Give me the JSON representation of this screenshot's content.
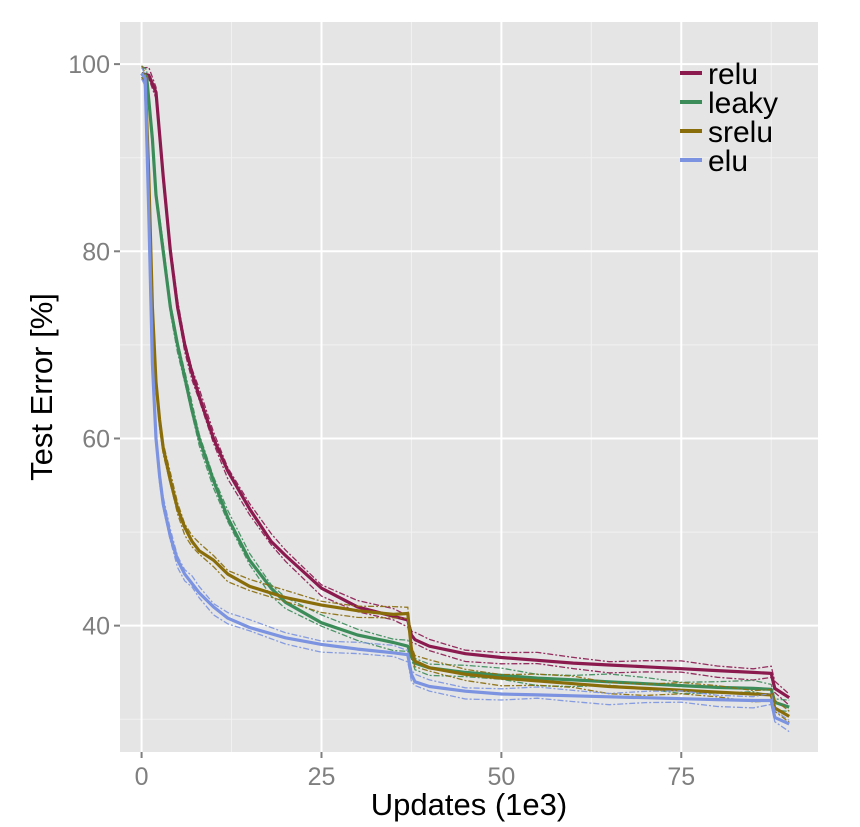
{
  "chart_data": {
    "type": "line",
    "xlabel": "Updates (1e3)",
    "ylabel": "Test Error [%]",
    "xlim": [
      -3,
      94
    ],
    "ylim": [
      26.5,
      104.5
    ],
    "x_ticks": [
      0,
      25,
      50,
      75
    ],
    "x_tick_labels": [
      "0",
      "25",
      "50",
      "75"
    ],
    "y_ticks": [
      40,
      60,
      80,
      100
    ],
    "y_tick_labels": [
      "40",
      "60",
      "80",
      "100"
    ],
    "grid": true,
    "legend_position": "top-right",
    "series": [
      {
        "name": "relu",
        "color": "#8b1a4f",
        "points": [
          [
            0,
            99
          ],
          [
            1,
            98.8
          ],
          [
            2,
            97
          ],
          [
            3,
            88
          ],
          [
            4,
            80
          ],
          [
            5,
            74
          ],
          [
            6,
            70
          ],
          [
            7,
            67
          ],
          [
            8,
            64.5
          ],
          [
            10,
            60
          ],
          [
            12,
            56.5
          ],
          [
            15,
            52.5
          ],
          [
            18,
            49
          ],
          [
            20,
            47.5
          ],
          [
            25,
            44
          ],
          [
            30,
            42
          ],
          [
            35,
            41
          ],
          [
            37,
            40.6
          ],
          [
            37.5,
            39
          ],
          [
            38,
            38.5
          ],
          [
            40,
            37.8
          ],
          [
            45,
            37
          ],
          [
            50,
            36.6
          ],
          [
            55,
            36.3
          ],
          [
            60,
            36
          ],
          [
            65,
            35.8
          ],
          [
            70,
            35.6
          ],
          [
            75,
            35.4
          ],
          [
            80,
            35.2
          ],
          [
            85,
            35
          ],
          [
            87.5,
            34.9
          ],
          [
            88,
            33.3
          ],
          [
            90,
            32.3
          ]
        ]
      },
      {
        "name": "leaky",
        "color": "#3c8c5a",
        "points": [
          [
            0,
            99
          ],
          [
            0.7,
            98.7
          ],
          [
            1.5,
            92
          ],
          [
            2,
            86
          ],
          [
            3,
            80
          ],
          [
            4,
            74
          ],
          [
            5,
            70
          ],
          [
            6,
            66.5
          ],
          [
            7,
            63
          ],
          [
            8,
            60
          ],
          [
            10,
            55.5
          ],
          [
            12,
            51.5
          ],
          [
            15,
            47
          ],
          [
            18,
            44
          ],
          [
            20,
            42.5
          ],
          [
            25,
            40.3
          ],
          [
            30,
            39
          ],
          [
            35,
            38.2
          ],
          [
            37,
            37.8
          ],
          [
            37.5,
            36.8
          ],
          [
            38,
            36
          ],
          [
            40,
            35.5
          ],
          [
            45,
            35
          ],
          [
            50,
            34.7
          ],
          [
            55,
            34.4
          ],
          [
            60,
            34.2
          ],
          [
            65,
            34
          ],
          [
            70,
            33.8
          ],
          [
            75,
            33.6
          ],
          [
            80,
            33.4
          ],
          [
            85,
            33.3
          ],
          [
            87.5,
            33.2
          ],
          [
            88,
            31.8
          ],
          [
            90,
            31.3
          ]
        ]
      },
      {
        "name": "srelu",
        "color": "#8a6d0b",
        "points": [
          [
            0,
            99
          ],
          [
            0.5,
            98.6
          ],
          [
            1,
            88
          ],
          [
            1.5,
            74
          ],
          [
            2,
            66
          ],
          [
            2.5,
            62
          ],
          [
            3,
            59
          ],
          [
            4,
            55.5
          ],
          [
            5,
            52.5
          ],
          [
            6,
            50.5
          ],
          [
            7,
            49
          ],
          [
            8,
            48
          ],
          [
            10,
            47
          ],
          [
            12,
            45.5
          ],
          [
            15,
            44.2
          ],
          [
            20,
            43
          ],
          [
            25,
            42.2
          ],
          [
            30,
            41.6
          ],
          [
            35,
            41.2
          ],
          [
            37,
            41.3
          ],
          [
            37.5,
            37.5
          ],
          [
            38,
            36.2
          ],
          [
            40,
            35.5
          ],
          [
            45,
            34.8
          ],
          [
            50,
            34.4
          ],
          [
            55,
            34.1
          ],
          [
            60,
            33.8
          ],
          [
            65,
            33.5
          ],
          [
            70,
            33.3
          ],
          [
            75,
            33.1
          ],
          [
            80,
            32.9
          ],
          [
            85,
            32.7
          ],
          [
            87.5,
            32.6
          ],
          [
            88,
            31.2
          ],
          [
            90,
            30.3
          ]
        ]
      },
      {
        "name": "elu",
        "color": "#7b93e0",
        "points": [
          [
            0,
            99
          ],
          [
            0.5,
            98.5
          ],
          [
            1,
            84
          ],
          [
            1.5,
            68
          ],
          [
            2,
            60
          ],
          [
            2.5,
            56
          ],
          [
            3,
            53
          ],
          [
            4,
            49.5
          ],
          [
            5,
            47
          ],
          [
            6,
            45.5
          ],
          [
            7,
            44.5
          ],
          [
            8,
            43.5
          ],
          [
            10,
            42
          ],
          [
            12,
            40.8
          ],
          [
            15,
            39.8
          ],
          [
            20,
            38.7
          ],
          [
            25,
            38
          ],
          [
            30,
            37.5
          ],
          [
            35,
            37.1
          ],
          [
            37,
            36.9
          ],
          [
            37.5,
            34.8
          ],
          [
            38,
            34
          ],
          [
            40,
            33.5
          ],
          [
            45,
            33
          ],
          [
            50,
            32.7
          ],
          [
            55,
            32.6
          ],
          [
            60,
            32.5
          ],
          [
            65,
            32.4
          ],
          [
            70,
            32.3
          ],
          [
            75,
            32.2
          ],
          [
            80,
            32.1
          ],
          [
            85,
            32
          ],
          [
            87.5,
            32
          ],
          [
            88,
            30.2
          ],
          [
            90,
            29.5
          ]
        ]
      }
    ]
  }
}
